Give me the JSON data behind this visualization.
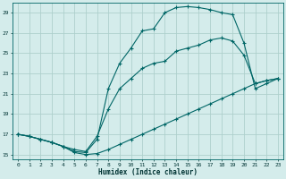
{
  "xlabel": "Humidex (Indice chaleur)",
  "xlim": [
    -0.5,
    23.5
  ],
  "ylim": [
    14.5,
    30.0
  ],
  "xticks": [
    0,
    1,
    2,
    3,
    4,
    5,
    6,
    7,
    8,
    9,
    10,
    11,
    12,
    13,
    14,
    15,
    16,
    17,
    18,
    19,
    20,
    21,
    22,
    23
  ],
  "yticks": [
    15,
    17,
    19,
    21,
    23,
    25,
    27,
    29
  ],
  "bg_color": "#d4eceb",
  "grid_color": "#aed0cc",
  "line_color": "#006666",
  "line1_x": [
    0,
    1,
    2,
    3,
    4,
    5,
    6,
    7,
    8,
    9,
    10,
    11,
    12,
    13,
    14,
    15,
    16,
    17,
    18,
    19,
    20,
    21,
    22,
    23
  ],
  "line1_y": [
    17.0,
    16.8,
    16.5,
    16.2,
    15.8,
    15.2,
    15.0,
    15.1,
    15.5,
    16.0,
    16.5,
    17.0,
    17.5,
    18.0,
    18.5,
    19.0,
    19.5,
    20.0,
    20.5,
    21.0,
    21.5,
    22.0,
    22.3,
    22.5
  ],
  "line2_x": [
    0,
    1,
    2,
    3,
    4,
    5,
    6,
    7,
    8,
    9,
    10,
    11,
    12,
    13,
    14,
    15,
    16,
    17,
    18,
    19,
    20,
    21,
    22,
    23
  ],
  "line2_y": [
    17.0,
    16.8,
    16.5,
    16.2,
    15.8,
    15.3,
    15.2,
    16.5,
    21.5,
    24.0,
    25.5,
    27.2,
    27.4,
    29.0,
    29.5,
    29.6,
    29.5,
    29.3,
    29.0,
    28.8,
    26.0,
    21.5,
    22.0,
    22.5
  ],
  "line3_x": [
    0,
    1,
    2,
    3,
    4,
    5,
    6,
    7,
    8,
    9,
    10,
    11,
    12,
    13,
    14,
    15,
    16,
    17,
    18,
    19,
    20,
    21,
    22,
    23
  ],
  "line3_y": [
    17.0,
    16.8,
    16.5,
    16.2,
    15.8,
    15.5,
    15.3,
    16.8,
    19.5,
    21.5,
    22.5,
    23.5,
    24.0,
    24.2,
    25.2,
    25.5,
    25.8,
    26.3,
    26.5,
    26.2,
    24.8,
    22.0,
    22.3,
    22.5
  ]
}
